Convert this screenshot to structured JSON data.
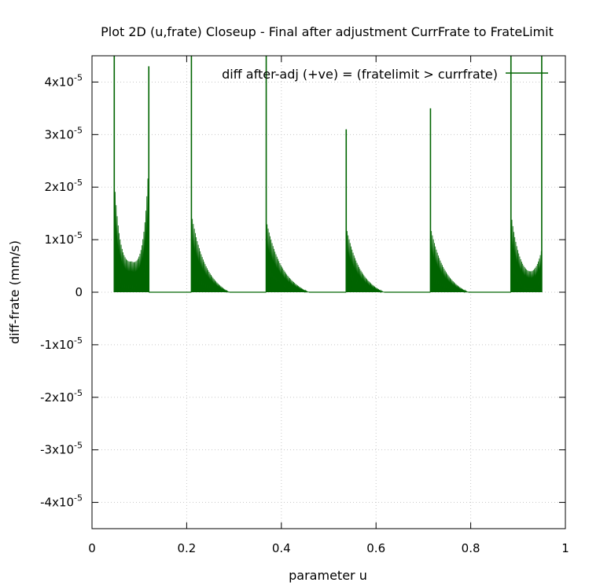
{
  "chart_data": {
    "type": "line",
    "title": "Plot 2D (u,frate) Closeup - Final after adjustment CurrFrate to FrateLimit",
    "xlabel": "parameter u",
    "ylabel": "diff-frate (mm/s)",
    "xlim": [
      0,
      1
    ],
    "ylim": [
      -4.5e-05,
      4.5e-05
    ],
    "xticks": [
      {
        "value": 0,
        "label": "0"
      },
      {
        "value": 0.2,
        "label": "0.2"
      },
      {
        "value": 0.4,
        "label": "0.4"
      },
      {
        "value": 0.6,
        "label": "0.6"
      },
      {
        "value": 0.8,
        "label": "0.8"
      },
      {
        "value": 1,
        "label": "1"
      }
    ],
    "yticks": [
      {
        "value": 4e-05,
        "label": "4x10",
        "exp": "-5"
      },
      {
        "value": 3e-05,
        "label": "3x10",
        "exp": "-5"
      },
      {
        "value": 2e-05,
        "label": "2x10",
        "exp": "-5"
      },
      {
        "value": 1e-05,
        "label": "1x10",
        "exp": "-5"
      },
      {
        "value": 0,
        "label": "0",
        "exp": ""
      },
      {
        "value": -1e-05,
        "label": "-1x10",
        "exp": "-5"
      },
      {
        "value": -2e-05,
        "label": "-2x10",
        "exp": "-5"
      },
      {
        "value": -3e-05,
        "label": "-3x10",
        "exp": "-5"
      },
      {
        "value": -4e-05,
        "label": "-4x10",
        "exp": "-5"
      }
    ],
    "grid": true,
    "legend_position": "top-right",
    "series": [
      {
        "name": "diff after-adj (+ve) = (fratelimit > currfrate)",
        "color": "#006400",
        "segments": [
          {
            "start": 0.047,
            "end": 0.12,
            "left_peak": 4.5e-05,
            "left_level": 2e-05,
            "mid_level": 7e-06,
            "right_peak": 4.3e-05
          },
          {
            "start": 0.21,
            "end": 0.29,
            "left_peak": 4.5e-05,
            "left_level": 1.2e-05,
            "tail": 0.0
          },
          {
            "start": 0.368,
            "end": 0.458,
            "left_peak": 4.5e-05,
            "left_level": 1.1e-05,
            "tail": 0.0
          },
          {
            "start": 0.537,
            "end": 0.617,
            "left_peak": 3.1e-05,
            "left_level": 1e-05,
            "tail": 0.0
          },
          {
            "start": 0.715,
            "end": 0.795,
            "left_peak": 3.5e-05,
            "left_level": 1e-05,
            "tail": 0.0
          },
          {
            "start": 0.885,
            "end": 0.95,
            "left_peak": 4.5e-05,
            "left_level": 1.5e-05,
            "right_peak": 4.5e-05
          }
        ]
      }
    ]
  }
}
